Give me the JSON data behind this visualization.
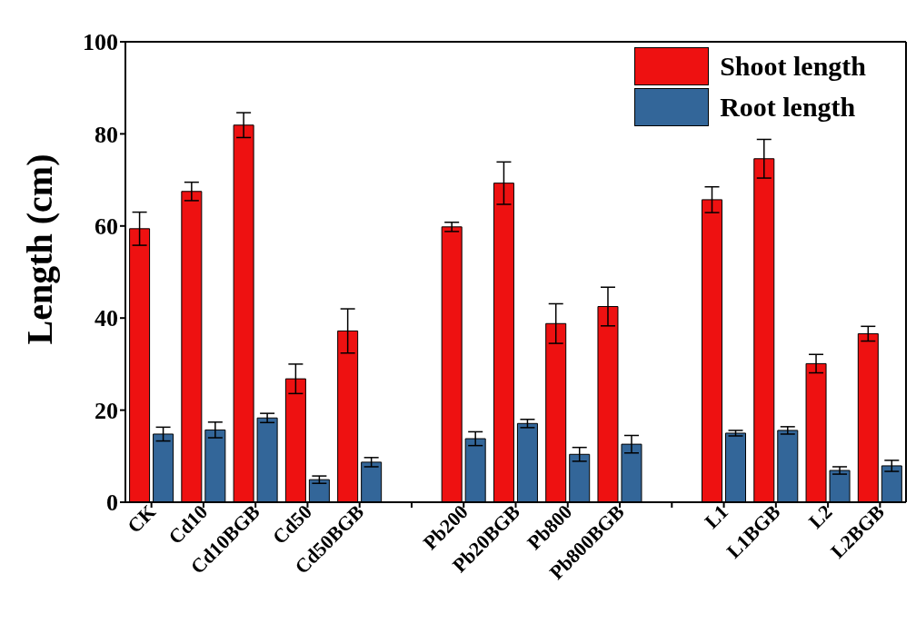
{
  "chart_data": {
    "type": "bar",
    "ylabel": "Length (cm)",
    "categories": [
      "CK",
      "Cd10",
      "Cd10BGB",
      "Cd50",
      "Cd50BGB",
      null,
      "Pb200",
      "Pb20BGB",
      "Pb800",
      "Pb800BGB",
      null,
      "L1",
      "L1BGB",
      "L2",
      "L2BGB"
    ],
    "series": [
      {
        "name": "Shoot length",
        "color": "#ee1111",
        "values": [
          59.4,
          67.5,
          81.9,
          26.8,
          37.2,
          null,
          59.8,
          69.3,
          38.8,
          42.5,
          null,
          65.7,
          74.6,
          30.1,
          36.6
        ],
        "errors": [
          3.6,
          2,
          2.7,
          3.2,
          4.8,
          null,
          1,
          4.6,
          4.3,
          4.2,
          null,
          2.8,
          4.2,
          2,
          1.6
        ]
      },
      {
        "name": "Root length",
        "color": "#336699",
        "values": [
          14.8,
          15.7,
          18.3,
          4.9,
          8.7,
          null,
          13.8,
          17.1,
          10.4,
          12.6,
          null,
          15,
          15.6,
          6.9,
          7.9
        ],
        "errors": [
          1.5,
          1.7,
          1,
          0.8,
          1,
          null,
          1.5,
          0.9,
          1.5,
          1.9,
          null,
          0.6,
          0.8,
          0.8,
          1.2
        ]
      }
    ],
    "ylim": [
      0,
      100
    ],
    "yticks": [
      0,
      20,
      40,
      60,
      80,
      100
    ],
    "legend": "top right"
  }
}
